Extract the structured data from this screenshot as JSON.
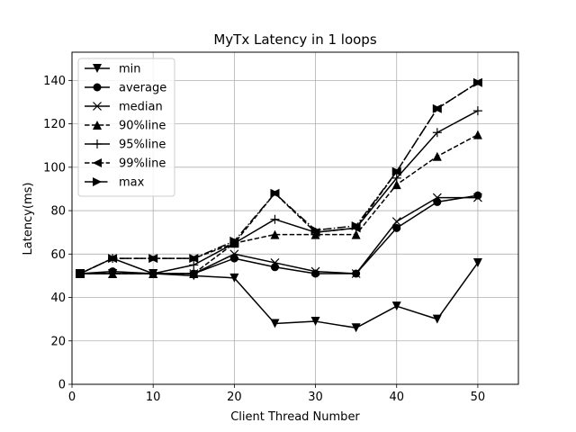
{
  "chart_data": {
    "type": "line",
    "title": "MyTx Latency in 1 loops",
    "xlabel": "Client Thread Number",
    "ylabel": "Latency(ms)",
    "xlim": [
      0,
      55
    ],
    "ylim": [
      0,
      153
    ],
    "xticks": [
      0,
      10,
      20,
      30,
      40,
      50
    ],
    "yticks": [
      0,
      20,
      40,
      60,
      80,
      100,
      120,
      140
    ],
    "grid": true,
    "legend_position": "top-left",
    "x": [
      1,
      5,
      10,
      15,
      20,
      25,
      30,
      35,
      40,
      45,
      50
    ],
    "series": [
      {
        "name": "min",
        "marker": "triangle-down",
        "dash": "solid",
        "values": [
          51,
          51,
          51,
          50,
          49,
          28,
          29,
          26,
          36,
          30,
          56
        ]
      },
      {
        "name": "average",
        "marker": "circle",
        "dash": "solid",
        "values": [
          51,
          52,
          51,
          51,
          58,
          54,
          51,
          51,
          72,
          84,
          87
        ]
      },
      {
        "name": "median",
        "marker": "x",
        "dash": "solid",
        "values": [
          51,
          51,
          51,
          51,
          60,
          56,
          52,
          51,
          75,
          86,
          86
        ]
      },
      {
        "name": "90%line",
        "marker": "triangle-up",
        "dash": "dashed",
        "values": [
          51,
          51,
          51,
          51,
          65,
          69,
          69,
          69,
          92,
          105,
          115
        ]
      },
      {
        "name": "95%line",
        "marker": "plus",
        "dash": "solid",
        "values": [
          51,
          58,
          51,
          55,
          65,
          76,
          70,
          72,
          95,
          116,
          126
        ]
      },
      {
        "name": "99%line",
        "marker": "triangle-left",
        "dash": "dashed",
        "values": [
          51,
          58,
          58,
          58,
          65,
          88,
          70,
          72,
          98,
          127,
          139
        ]
      },
      {
        "name": "max",
        "marker": "triangle-right",
        "dash": "dashdot",
        "values": [
          51,
          58,
          58,
          58,
          66,
          88,
          71,
          73,
          98,
          127,
          139
        ]
      }
    ]
  }
}
